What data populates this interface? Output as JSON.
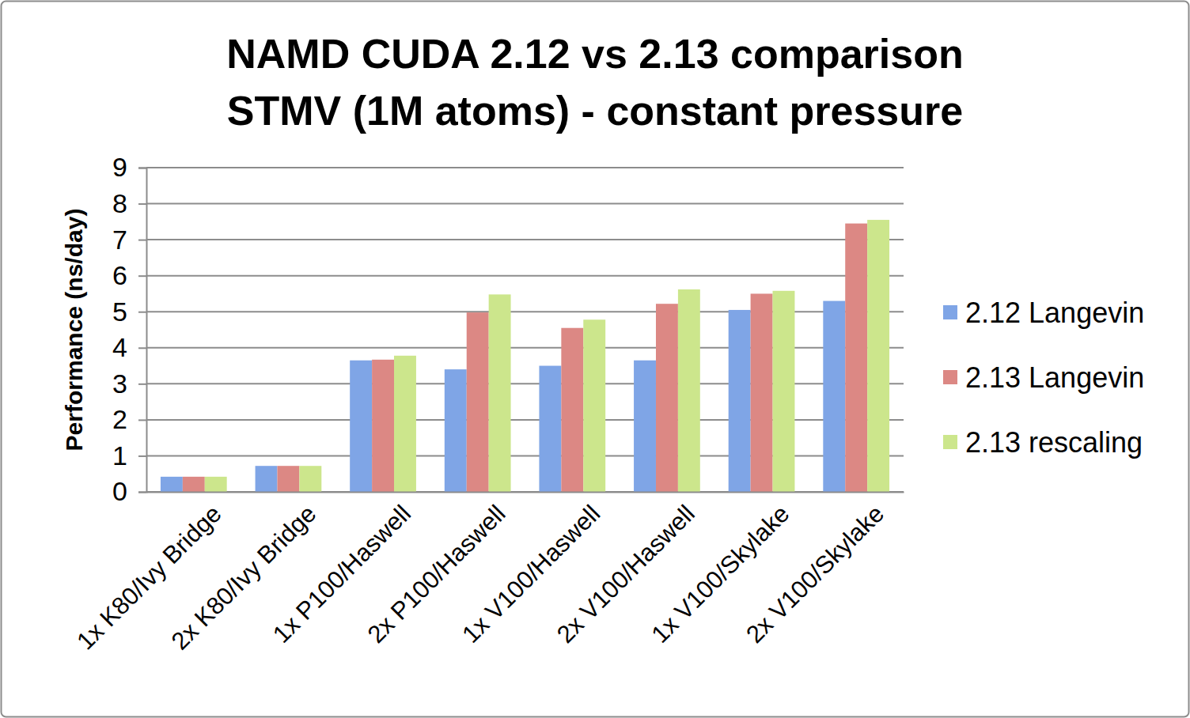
{
  "chart_data": {
    "type": "bar",
    "title": [
      "NAMD CUDA 2.12 vs 2.13 comparison",
      "STMV (1M atoms) - constant pressure"
    ],
    "y_label": "Performance (ns/day)",
    "categories": [
      "1x K80/Ivy Bridge",
      "2x K80/Ivy Bridge",
      "1x P100/Haswell",
      "2x P100/Haswell",
      "1x V100/Haswell",
      "2x V100/Haswell",
      "1x V100/Skylake",
      "2x V100/Skylake"
    ],
    "series": [
      {
        "name": "2.12 Langevin",
        "color": "#7fa5e6",
        "values": [
          0.42,
          0.72,
          3.65,
          3.4,
          3.5,
          3.65,
          5.05,
          5.3
        ]
      },
      {
        "name": "2.13 Langevin",
        "color": "#dc8884",
        "values": [
          0.42,
          0.72,
          3.67,
          4.98,
          4.55,
          5.22,
          5.5,
          7.45
        ]
      },
      {
        "name": "2.13 rescaling",
        "color": "#cce68c",
        "values": [
          0.42,
          0.72,
          3.78,
          5.48,
          4.78,
          5.62,
          5.58,
          7.55
        ]
      }
    ],
    "ylim": [
      0,
      9
    ],
    "yticks": [
      0,
      1,
      2,
      3,
      4,
      5,
      6,
      7,
      8,
      9
    ],
    "grid": true,
    "legend": "right"
  }
}
